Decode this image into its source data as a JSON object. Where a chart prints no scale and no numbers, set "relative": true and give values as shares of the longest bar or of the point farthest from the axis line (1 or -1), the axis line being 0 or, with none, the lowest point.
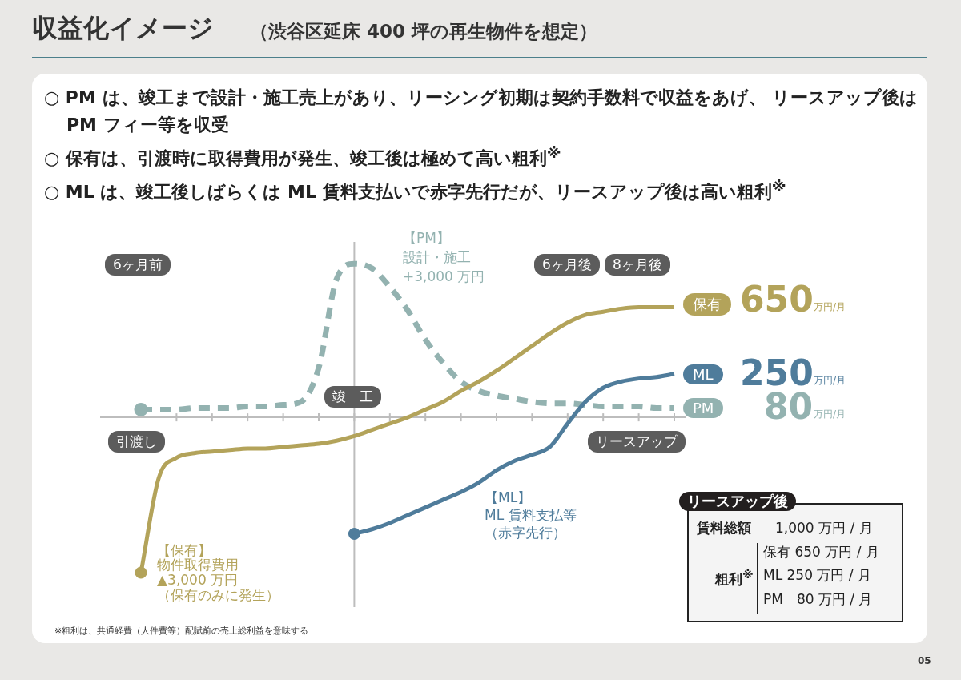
{
  "chart_data": {
    "type": "line",
    "title": "収益化イメージ",
    "subtitle": "（渋谷区延床 400 坪の再生物件を想定）",
    "relative": true,
    "legend": false,
    "categories": [
      null,
      null,
      null,
      null,
      null,
      null,
      null,
      null,
      null,
      null,
      null,
      null,
      null,
      null,
      null,
      null,
      null,
      null,
      null,
      null,
      null,
      null,
      null,
      null,
      null,
      null,
      null,
      null,
      null,
      null,
      null
    ],
    "series": [
      {
        "name": "保有",
        "color": "#b3a35a",
        "line_style": "solid",
        "values": [
          -1.0,
          -0.39,
          -0.26,
          -0.23,
          -0.22,
          -0.21,
          -0.2,
          -0.2,
          -0.19,
          -0.18,
          -0.17,
          -0.15,
          -0.12,
          -0.08,
          -0.04,
          0,
          0.05,
          0.1,
          0.17,
          0.23,
          0.3,
          0.38,
          0.46,
          0.54,
          0.61,
          0.66,
          0.68,
          0.7,
          0.71,
          0.71,
          0.71
        ]
      },
      {
        "name": "ML",
        "color": "#4f7c9b",
        "line_style": "solid",
        "values": [
          null,
          null,
          null,
          null,
          null,
          null,
          null,
          null,
          null,
          null,
          null,
          null,
          -0.75,
          -0.72,
          -0.68,
          -0.63,
          -0.58,
          -0.53,
          -0.48,
          -0.42,
          -0.34,
          -0.28,
          -0.24,
          -0.19,
          -0.04,
          0.1,
          0.19,
          0.23,
          0.25,
          0.26,
          0.28
        ]
      },
      {
        "name": "PM",
        "color": "#93b2b0",
        "line_style": "dashed",
        "values": [
          0.05,
          0.05,
          0.05,
          0.06,
          0.06,
          0.06,
          0.07,
          0.07,
          0.08,
          0.1,
          0.32,
          0.89,
          0.99,
          0.96,
          0.84,
          0.69,
          0.5,
          0.35,
          0.23,
          0.17,
          0.14,
          0.12,
          0.1,
          0.09,
          0.09,
          0.08,
          0.07,
          0.07,
          0.07,
          0.06,
          0.06
        ]
      }
    ],
    "annotations": [
      "○ PM は、竣工まで設計・施工売上があり、リーシング初期は契約手数料で収益をあげ、 リースアップ後は PM フィー等を収受",
      "○ 保有は、引渡時に取得費用が発生、竣工後は極めて高い粗利$^{※}$",
      "○ ML は、竣工後しばらくは ML 賃料支払いで赤字先行だが、リースアップ後は高い粗利$^{※}$",
      "6ヶ月前",
      "竣　工",
      "6ヶ月後",
      "8ヶ月後",
      "引渡し",
      "リースアップ",
      "【PM】",
      "設計・施工",
      "+3,000 万円",
      "【保有】",
      "物件取得費用",
      "▲3,000 万円",
      "（保有のみに発生）",
      "【ML】",
      "ML 賃料支払等",
      "（赤字先行）",
      "650",
      "万円/月",
      "250",
      "万円/月",
      "80",
      "万円/月",
      "リースアップ後",
      "賃料総額",
      "1,000 万円 / 月",
      "粗利$^{※}$",
      "保有 650 万円 / 月",
      "ML 250 万円 / 月",
      "PM　80 万円 / 月",
      "※粗利は、共通経費（人件費等）配賦前の売上総利益を意味する",
      "05"
    ]
  }
}
